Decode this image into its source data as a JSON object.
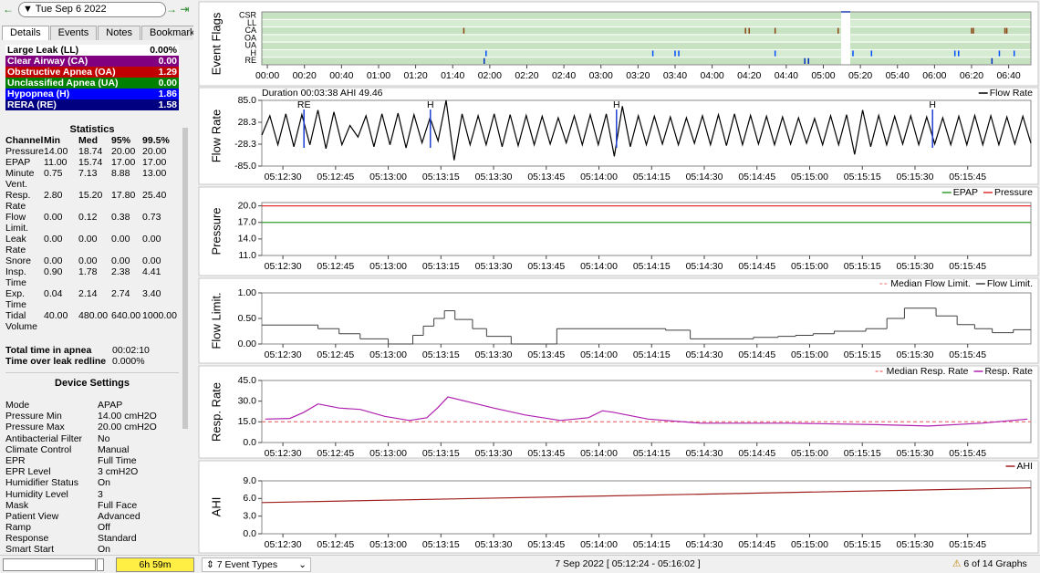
{
  "header": {
    "date": "Tue Sep 6 2022"
  },
  "tabs": [
    "Details",
    "Events",
    "Notes",
    "Bookmarks"
  ],
  "event_summary": [
    {
      "label": "Large Leak (LL)",
      "value": "0.00%",
      "color": "#ffffff",
      "text": "#000000"
    },
    {
      "label": "Clear Airway (CA)",
      "value": "0.00",
      "color": "#800080",
      "text": "#ffffff"
    },
    {
      "label": "Obstructive Apnea (OA)",
      "value": "1.29",
      "color": "#c00000",
      "text": "#ffffff"
    },
    {
      "label": "Unclassified Apnea (UA)",
      "value": "0.00",
      "color": "#008000",
      "text": "#ffffff"
    },
    {
      "label": "Hypopnea (H)",
      "value": "1.86",
      "color": "#0000ff",
      "text": "#ffffff"
    },
    {
      "label": "RERA (RE)",
      "value": "1.58",
      "color": "#000080",
      "text": "#ffffff"
    }
  ],
  "statistics": {
    "title": "Statistics",
    "columns": [
      "Channel",
      "Min",
      "Med",
      "95%",
      "99.5%"
    ],
    "rows": [
      [
        "Pressure",
        "14.00",
        "18.74",
        "20.00",
        "20.00"
      ],
      [
        "EPAP",
        "11.00",
        "15.74",
        "17.00",
        "17.00"
      ],
      [
        "Minute Vent.",
        "0.75",
        "7.13",
        "8.88",
        "13.00"
      ],
      [
        "Resp. Rate",
        "2.80",
        "15.20",
        "17.80",
        "25.40"
      ],
      [
        "Flow Limit.",
        "0.00",
        "0.12",
        "0.38",
        "0.73"
      ],
      [
        "Leak Rate",
        "0.00",
        "0.00",
        "0.00",
        "0.00"
      ],
      [
        "Snore",
        "0.00",
        "0.00",
        "0.00",
        "0.00"
      ],
      [
        "Insp. Time",
        "0.90",
        "1.78",
        "2.38",
        "4.41"
      ],
      [
        "Exp. Time",
        "0.04",
        "2.14",
        "2.74",
        "3.40"
      ],
      [
        "Tidal Volume",
        "40.00",
        "480.00",
        "640.00",
        "1000.00"
      ]
    ]
  },
  "totals": [
    [
      "Total time in apnea",
      "00:02:10"
    ],
    [
      "Time over leak redline",
      "0.000%"
    ]
  ],
  "device_settings": {
    "title": "Device Settings",
    "rows": [
      [
        "Mode",
        "APAP"
      ],
      [
        "Pressure Min",
        "14.00 cmH2O"
      ],
      [
        "Pressure Max",
        "20.00 cmH2O"
      ],
      [
        "Antibacterial Filter",
        "No"
      ],
      [
        "Climate Control",
        "Manual"
      ],
      [
        "EPR",
        "Full Time"
      ],
      [
        "EPR Level",
        "3 cmH2O"
      ],
      [
        "Humidifier Status",
        "On"
      ],
      [
        "Humidity Level",
        "3"
      ],
      [
        "Mask",
        "Full Face"
      ],
      [
        "Patient View",
        "Advanced"
      ],
      [
        "Ramp",
        "Off"
      ],
      [
        "Response",
        "Standard"
      ],
      [
        "Smart Start",
        "On"
      ]
    ]
  },
  "footer": {
    "duration": "6h 59m",
    "event_types": "7 Event Types",
    "range": "7 Sep 2022 [ 05:12:24 - 05:16:02 ]",
    "graphs": "6 of 14 Graphs"
  },
  "event_flags": {
    "ylabel": "Event Flags",
    "xlim": [
      -3,
      412
    ],
    "xticks": [
      {
        "value": 0,
        "label": "00:00"
      },
      {
        "value": 20,
        "label": "00:20"
      },
      {
        "value": 40,
        "label": "00:40"
      },
      {
        "value": 60,
        "label": "01:00"
      },
      {
        "value": 80,
        "label": "01:20"
      },
      {
        "value": 100,
        "label": "01:40"
      },
      {
        "value": 120,
        "label": "02:00"
      },
      {
        "value": 140,
        "label": "02:20"
      },
      {
        "value": 160,
        "label": "02:40"
      },
      {
        "value": 180,
        "label": "03:00"
      },
      {
        "value": 200,
        "label": "03:20"
      },
      {
        "value": 220,
        "label": "03:40"
      },
      {
        "value": 240,
        "label": "04:00"
      },
      {
        "value": 260,
        "label": "04:20"
      },
      {
        "value": 280,
        "label": "04:40"
      },
      {
        "value": 300,
        "label": "05:00"
      },
      {
        "value": 320,
        "label": "05:20"
      },
      {
        "value": 340,
        "label": "05:40"
      },
      {
        "value": 360,
        "label": "06:00"
      },
      {
        "value": 380,
        "label": "06:20"
      },
      {
        "value": 400,
        "label": "06:40"
      }
    ],
    "flags": [
      {
        "name": "CSR",
        "color": "#3050ff",
        "times": []
      },
      {
        "name": "LL",
        "color": "#808080",
        "times": []
      },
      {
        "name": "CA",
        "color": "#8b4513",
        "times": [
          106,
          258,
          260,
          274,
          308,
          380,
          381,
          398,
          399
        ]
      },
      {
        "name": "OA",
        "color": "#8b4513",
        "times": []
      },
      {
        "name": "UA",
        "color": "#008000",
        "times": []
      },
      {
        "name": "H",
        "color": "#0050ff",
        "times": [
          118,
          208,
          220,
          222,
          274,
          311,
          313,
          314,
          316,
          326,
          371,
          373,
          395,
          403
        ]
      },
      {
        "name": "RE",
        "color": "#0030c0",
        "times": [
          117,
          290,
          292,
          391
        ]
      }
    ]
  },
  "time_xlim": [
    0,
    219
  ],
  "time_ticks": [
    {
      "value": 6,
      "label": "05:12:30"
    },
    {
      "value": 21,
      "label": "05:12:45"
    },
    {
      "value": 36,
      "label": "05:13:00"
    },
    {
      "value": 51,
      "label": "05:13:15"
    },
    {
      "value": 66,
      "label": "05:13:30"
    },
    {
      "value": 81,
      "label": "05:13:45"
    },
    {
      "value": 96,
      "label": "05:14:00"
    },
    {
      "value": 111,
      "label": "05:14:15"
    },
    {
      "value": 126,
      "label": "05:14:30"
    },
    {
      "value": 141,
      "label": "05:14:45"
    },
    {
      "value": 156,
      "label": "05:15:00"
    },
    {
      "value": 171,
      "label": "05:15:15"
    },
    {
      "value": 186,
      "label": "05:15:30"
    },
    {
      "value": 201,
      "label": "05:15:45"
    }
  ],
  "graphs": [
    {
      "kind": "wave",
      "ylabel": "Flow Rate",
      "info": "Duration 00:03:38 AHI 49.46",
      "ylim": [
        -85,
        85
      ],
      "yticks": [
        {
          "value": 85,
          "label": "85.0"
        },
        {
          "value": 28.3,
          "label": "28.3"
        },
        {
          "value": -28.3,
          "label": "-28.3"
        },
        {
          "value": -85,
          "label": "-85.0"
        }
      ],
      "annotations": [
        {
          "label": "RE",
          "x": 12
        },
        {
          "label": "H",
          "x": 48
        },
        {
          "label": "H",
          "x": 101
        },
        {
          "label": "H",
          "x": 191
        }
      ],
      "series": [
        {
          "name": "Flow Rate",
          "color": "#000000",
          "values": [
            -5,
            45,
            -30,
            50,
            -35,
            48,
            -30,
            60,
            -40,
            55,
            -30,
            20,
            -10,
            45,
            -35,
            50,
            -30,
            52,
            -38,
            48,
            -25,
            40,
            -20,
            85,
            -70,
            50,
            -30,
            45,
            -30,
            50,
            -35,
            48,
            -32,
            46,
            -30,
            44,
            -28,
            40,
            -25,
            45,
            -30,
            48,
            -30,
            50,
            -60,
            70,
            -35,
            45,
            -30,
            44,
            -28,
            42,
            -30,
            40,
            -26,
            45,
            -30,
            48,
            -32,
            50,
            -30,
            46,
            -28,
            44,
            -30,
            42,
            -28,
            40,
            -26,
            38,
            -30,
            45,
            -30,
            48,
            -55,
            60,
            -35,
            46,
            -30,
            44,
            -28,
            45,
            -30,
            42,
            -28,
            40,
            -30,
            44,
            -30,
            46,
            -30,
            45,
            -30,
            42,
            -28,
            44,
            -26
          ]
        }
      ]
    },
    {
      "kind": "line",
      "ylabel": "Pressure",
      "ylim": [
        11,
        20.6
      ],
      "yticks": [
        {
          "value": 20,
          "label": "20.0"
        },
        {
          "value": 17,
          "label": "17.0"
        },
        {
          "value": 14,
          "label": "14.0"
        },
        {
          "value": 11,
          "label": "11.0"
        }
      ],
      "series": [
        {
          "name": "EPAP",
          "color": "#2e9e2e",
          "value": 17
        },
        {
          "name": "Pressure",
          "color": "#e03030",
          "value": 20
        }
      ]
    },
    {
      "kind": "step",
      "ylabel": "Flow Limit.",
      "ylim": [
        0,
        1
      ],
      "yticks": [
        {
          "value": 1,
          "label": "1.00"
        },
        {
          "value": 0.5,
          "label": "0.50"
        },
        {
          "value": 0,
          "label": "0.00"
        }
      ],
      "series": [
        {
          "name": "Median Flow Limit.",
          "color": "#f0a0a0",
          "style": "dashed"
        },
        {
          "name": "Flow Limit.",
          "color": "#404040",
          "x": [
            0,
            16,
            22,
            28,
            36,
            43,
            46,
            49,
            52,
            55,
            60,
            64,
            71,
            84,
            115,
            122,
            140,
            147,
            152,
            157,
            163,
            172,
            178,
            183,
            192,
            198,
            203,
            208,
            214
          ],
          "values": [
            0.37,
            0.3,
            0.2,
            0.1,
            0.0,
            0.17,
            0.35,
            0.5,
            0.65,
            0.48,
            0.3,
            0.15,
            0.0,
            0.3,
            0.27,
            0.1,
            0.13,
            0.15,
            0.17,
            0.2,
            0.25,
            0.3,
            0.5,
            0.7,
            0.55,
            0.38,
            0.3,
            0.22,
            0.28
          ]
        }
      ]
    },
    {
      "kind": "line",
      "ylabel": "Resp. Rate",
      "ylim": [
        0,
        45
      ],
      "yticks": [
        {
          "value": 45,
          "label": "45.0"
        },
        {
          "value": 30,
          "label": "30.0"
        },
        {
          "value": 15,
          "label": "15.0"
        },
        {
          "value": 0,
          "label": "0.0"
        }
      ],
      "series": [
        {
          "name": "Median Resp. Rate",
          "color": "#f08080",
          "style": "dashed",
          "value": 15
        },
        {
          "name": "Resp. Rate",
          "color": "#b020b0",
          "x": [
            1,
            8,
            12,
            16,
            22,
            28,
            35,
            42,
            47,
            50,
            53,
            58,
            66,
            75,
            85,
            93,
            97,
            100,
            110,
            125,
            150,
            175,
            190,
            205,
            218
          ],
          "values": [
            17,
            17.5,
            22,
            28,
            25,
            24,
            19,
            16,
            18,
            25,
            33,
            30,
            25,
            20,
            16,
            18,
            23,
            22,
            17,
            14,
            14,
            13,
            12,
            14,
            17
          ]
        }
      ]
    },
    {
      "kind": "line",
      "ylabel": "AHI",
      "ylim": [
        0,
        9
      ],
      "yticks": [
        {
          "value": 9,
          "label": "9.0"
        },
        {
          "value": 6,
          "label": "6.0"
        },
        {
          "value": 3,
          "label": "3.0"
        },
        {
          "value": 0,
          "label": "0.0"
        }
      ],
      "series": [
        {
          "name": "AHI",
          "color": "#a02020",
          "x": [
            0,
            219
          ],
          "values": [
            5.3,
            7.8
          ]
        }
      ]
    }
  ]
}
